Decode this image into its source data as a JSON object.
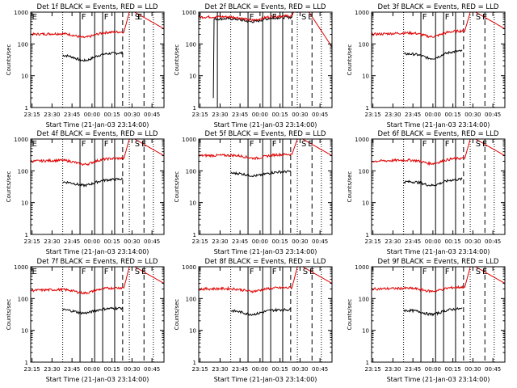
{
  "page": {
    "background": "#ffffff",
    "axis_color": "#000000",
    "events_color": "#000000",
    "lld_color": "#e00000",
    "y_label": "Counts/sec",
    "x_label": "Start Time (21-Jan-03 23:14:00)",
    "x_tick_labels": [
      "23:15",
      "23:30",
      "23:45",
      "00:00",
      "00:15",
      "00:30",
      "00:45"
    ],
    "y_tick_labels": [
      "1",
      "10",
      "100",
      "1000"
    ],
    "marker_F": "F",
    "marker_E": "E",
    "marker_S": "S"
  },
  "chart_data": [
    {
      "type": "line",
      "detector": "1f",
      "title": "Det 1f BLACK = Events, RED = LLD",
      "xlabel": "Start Time (21-Jan-03 23:14:00)",
      "ylabel": "Counts/sec",
      "x_unit": "minutes since 23:14",
      "xlim": [
        0,
        100
      ],
      "y_scale": "log",
      "ylim": [
        1,
        1000
      ],
      "series": [
        {
          "name": "Events",
          "color": "#000000",
          "x_start": 24,
          "x_end": 69,
          "start_value": 45,
          "end_value": 52,
          "dip_value": 30,
          "dip_at": 40
        },
        {
          "name": "LLD",
          "color": "#e00000",
          "x_start": 0,
          "x_end": 100,
          "start_value": 200,
          "end_value": 240,
          "dip_value": 160,
          "dip_at": 40,
          "flare_start": 70,
          "flare_peak": 1000,
          "decay_end_value": 300
        }
      ],
      "vlines_dotted": [
        24,
        74,
        92
      ],
      "vlines_solid": [
        37,
        48,
        54,
        63
      ],
      "vlines_dashed": [
        69,
        85
      ],
      "markers": [
        {
          "label": "E",
          "x": 1
        },
        {
          "label": "F",
          "x": 38
        },
        {
          "label": "F",
          "x": 55
        },
        {
          "label": "S",
          "x": 78
        },
        {
          "label": "E",
          "x": 80
        }
      ]
    },
    {
      "type": "line",
      "detector": "2f",
      "title": "Det 2f BLACK = Events, RED = LLD",
      "xlabel": "Start Time (21-Jan-03 23:14:00)",
      "ylabel": "Counts/sec",
      "x_unit": "minutes since 23:14",
      "xlim": [
        0,
        100
      ],
      "y_scale": "log",
      "ylim": [
        1,
        1000
      ],
      "series": [
        {
          "name": "Events",
          "color": "#000000",
          "x_start": 11,
          "x_end": 70,
          "start_value": 610,
          "end_value": 690,
          "dip_value": 500,
          "dip_at": 40,
          "glitch_value": 2,
          "glitch_at": 11
        },
        {
          "name": "LLD",
          "color": "#e00000",
          "x_start": 0,
          "x_end": 100,
          "start_value": 700,
          "end_value": 760,
          "dip_value": 560,
          "dip_at": 40,
          "flare_start": 70,
          "flare_peak": 2000,
          "decay_end_value": 80
        }
      ],
      "vlines_dotted": [
        24,
        74,
        92
      ],
      "vlines_solid": [
        14,
        37,
        48,
        54,
        63
      ],
      "vlines_dashed": [
        70,
        85
      ],
      "markers": [
        {
          "label": "F",
          "x": 38
        },
        {
          "label": "F",
          "x": 55
        },
        {
          "label": "S",
          "x": 77
        },
        {
          "label": "E",
          "x": 82
        }
      ]
    },
    {
      "type": "line",
      "detector": "3f",
      "title": "Det 3f BLACK = Events, RED = LLD",
      "xlabel": "Start Time (21-Jan-03 23:14:00)",
      "ylabel": "Counts/sec",
      "x_unit": "minutes since 23:14",
      "xlim": [
        0,
        100
      ],
      "y_scale": "log",
      "ylim": [
        1,
        1000
      ],
      "series": [
        {
          "name": "Events",
          "color": "#000000",
          "x_start": 24,
          "x_end": 68,
          "start_value": 48,
          "end_value": 60,
          "dip_value": 35,
          "dip_at": 45
        },
        {
          "name": "LLD",
          "color": "#e00000",
          "x_start": 0,
          "x_end": 100,
          "start_value": 200,
          "end_value": 260,
          "dip_value": 170,
          "dip_at": 45,
          "flare_start": 70,
          "flare_peak": 1000,
          "decay_end_value": 300
        }
      ],
      "vlines_dotted": [
        24,
        74,
        92
      ],
      "vlines_solid": [
        37,
        48,
        54,
        63
      ],
      "vlines_dashed": [
        69,
        85
      ],
      "markers": [
        {
          "label": "F",
          "x": 38
        },
        {
          "label": "F",
          "x": 55
        },
        {
          "label": "S",
          "x": 78
        },
        {
          "label": "E",
          "x": 83
        }
      ]
    },
    {
      "type": "line",
      "detector": "4f",
      "title": "Det 4f BLACK = Events, RED = LLD",
      "xlabel": "Start Time (21-Jan-03 23:14:00)",
      "ylabel": "Counts/sec",
      "x_unit": "minutes since 23:14",
      "xlim": [
        0,
        100
      ],
      "y_scale": "log",
      "ylim": [
        1,
        1000
      ],
      "series": [
        {
          "name": "Events",
          "color": "#000000",
          "x_start": 24,
          "x_end": 69,
          "start_value": 45,
          "end_value": 55,
          "dip_value": 35,
          "dip_at": 40
        },
        {
          "name": "LLD",
          "color": "#e00000",
          "x_start": 0,
          "x_end": 100,
          "start_value": 200,
          "end_value": 250,
          "dip_value": 160,
          "dip_at": 40,
          "flare_start": 70,
          "flare_peak": 1000,
          "decay_end_value": 300
        }
      ],
      "vlines_dotted": [
        24,
        74,
        92
      ],
      "vlines_solid": [
        37,
        48,
        54,
        63
      ],
      "vlines_dashed": [
        69,
        85
      ],
      "markers": [
        {
          "label": "E",
          "x": 1
        },
        {
          "label": "F",
          "x": 38
        },
        {
          "label": "F",
          "x": 55
        },
        {
          "label": "S",
          "x": 78
        },
        {
          "label": "E",
          "x": 83
        }
      ]
    },
    {
      "type": "line",
      "detector": "5f",
      "title": "Det 5f BLACK = Events, RED = LLD",
      "xlabel": "Start Time (21-Jan-03 23:14:00)",
      "ylabel": "Counts/sec",
      "x_unit": "minutes since 23:14",
      "xlim": [
        0,
        100
      ],
      "y_scale": "log",
      "ylim": [
        1,
        1000
      ],
      "series": [
        {
          "name": "Events",
          "color": "#000000",
          "x_start": 24,
          "x_end": 69,
          "start_value": 85,
          "end_value": 95,
          "dip_value": 70,
          "dip_at": 42
        },
        {
          "name": "LLD",
          "color": "#e00000",
          "x_start": 0,
          "x_end": 100,
          "start_value": 300,
          "end_value": 330,
          "dip_value": 250,
          "dip_at": 42,
          "flare_start": 70,
          "flare_peak": 1000,
          "decay_end_value": 300
        }
      ],
      "vlines_dotted": [
        24,
        74,
        92
      ],
      "vlines_solid": [
        37,
        48,
        54,
        63
      ],
      "vlines_dashed": [
        69,
        85
      ],
      "markers": [
        {
          "label": "F",
          "x": 38
        },
        {
          "label": "F",
          "x": 55
        },
        {
          "label": "S",
          "x": 77
        },
        {
          "label": "E",
          "x": 82
        }
      ]
    },
    {
      "type": "line",
      "detector": "6f",
      "title": "Det 6f BLACK = Events, RED = LLD",
      "xlabel": "Start Time (21-Jan-03 23:14:00)",
      "ylabel": "Counts/sec",
      "x_unit": "minutes since 23:14",
      "xlim": [
        0,
        100
      ],
      "y_scale": "log",
      "ylim": [
        1,
        1000
      ],
      "series": [
        {
          "name": "Events",
          "color": "#000000",
          "x_start": 24,
          "x_end": 68,
          "start_value": 45,
          "end_value": 55,
          "dip_value": 35,
          "dip_at": 45
        },
        {
          "name": "LLD",
          "color": "#e00000",
          "x_start": 0,
          "x_end": 100,
          "start_value": 200,
          "end_value": 250,
          "dip_value": 170,
          "dip_at": 45,
          "flare_start": 70,
          "flare_peak": 1000,
          "decay_end_value": 300
        }
      ],
      "vlines_dotted": [
        24,
        74,
        92
      ],
      "vlines_solid": [
        37,
        48,
        54,
        63
      ],
      "vlines_dashed": [
        69,
        85
      ],
      "markers": [
        {
          "label": "F",
          "x": 38
        },
        {
          "label": "F",
          "x": 55
        },
        {
          "label": "S",
          "x": 78
        },
        {
          "label": "E",
          "x": 83
        }
      ]
    },
    {
      "type": "line",
      "detector": "7f",
      "title": "Det 7f BLACK = Events, RED = LLD",
      "xlabel": "Start Time (21-Jan-03 23:14:00)",
      "ylabel": "Counts/sec",
      "x_unit": "minutes since 23:14",
      "xlim": [
        0,
        100
      ],
      "y_scale": "log",
      "ylim": [
        1,
        1000
      ],
      "series": [
        {
          "name": "Events",
          "color": "#000000",
          "x_start": 24,
          "x_end": 69,
          "start_value": 45,
          "end_value": 50,
          "dip_value": 35,
          "dip_at": 40
        },
        {
          "name": "LLD",
          "color": "#e00000",
          "x_start": 0,
          "x_end": 100,
          "start_value": 180,
          "end_value": 220,
          "dip_value": 150,
          "dip_at": 40,
          "flare_start": 70,
          "flare_peak": 1000,
          "decay_end_value": 300
        }
      ],
      "vlines_dotted": [
        24,
        74,
        92
      ],
      "vlines_solid": [
        37,
        48,
        54,
        63
      ],
      "vlines_dashed": [
        69,
        85
      ],
      "markers": [
        {
          "label": "E",
          "x": 1
        },
        {
          "label": "F",
          "x": 38
        },
        {
          "label": "F",
          "x": 55
        },
        {
          "label": "S",
          "x": 78
        },
        {
          "label": "E",
          "x": 83
        }
      ]
    },
    {
      "type": "line",
      "detector": "8f",
      "title": "Det 8f BLACK = Events, RED = LLD",
      "xlabel": "Start Time (21-Jan-03 23:14:00)",
      "ylabel": "Counts/sec",
      "x_unit": "minutes since 23:14",
      "xlim": [
        0,
        100
      ],
      "y_scale": "log",
      "ylim": [
        1,
        1000
      ],
      "series": [
        {
          "name": "Events",
          "color": "#000000",
          "x_start": 24,
          "x_end": 69,
          "start_value": 42,
          "end_value": 45,
          "dip_value": 32,
          "dip_at": 40
        },
        {
          "name": "LLD",
          "color": "#e00000",
          "x_start": 0,
          "x_end": 100,
          "start_value": 200,
          "end_value": 220,
          "dip_value": 170,
          "dip_at": 40,
          "flare_start": 70,
          "flare_peak": 1000,
          "decay_end_value": 300
        }
      ],
      "vlines_dotted": [
        24,
        74,
        92
      ],
      "vlines_solid": [
        37,
        48,
        54,
        63
      ],
      "vlines_dashed": [
        69,
        85
      ],
      "markers": [
        {
          "label": "F",
          "x": 38
        },
        {
          "label": "F",
          "x": 55
        },
        {
          "label": "S",
          "x": 78
        },
        {
          "label": "E",
          "x": 83
        }
      ]
    },
    {
      "type": "line",
      "detector": "9f",
      "title": "Det 9f BLACK = Events, RED = LLD",
      "xlabel": "Start Time (21-Jan-03 23:14:00)",
      "ylabel": "Counts/sec",
      "x_unit": "minutes since 23:14",
      "xlim": [
        0,
        100
      ],
      "y_scale": "log",
      "ylim": [
        1,
        1000
      ],
      "series": [
        {
          "name": "Events",
          "color": "#000000",
          "x_start": 24,
          "x_end": 68,
          "start_value": 42,
          "end_value": 48,
          "dip_value": 32,
          "dip_at": 45
        },
        {
          "name": "LLD",
          "color": "#e00000",
          "x_start": 0,
          "x_end": 100,
          "start_value": 200,
          "end_value": 230,
          "dip_value": 170,
          "dip_at": 45,
          "flare_start": 70,
          "flare_peak": 1000,
          "decay_end_value": 300
        }
      ],
      "vlines_dotted": [
        24,
        74,
        92
      ],
      "vlines_solid": [
        37,
        48,
        54,
        63
      ],
      "vlines_dashed": [
        69,
        85
      ],
      "markers": [
        {
          "label": "F",
          "x": 38
        },
        {
          "label": "F",
          "x": 55
        },
        {
          "label": "S",
          "x": 78
        },
        {
          "label": "E",
          "x": 83
        }
      ]
    }
  ]
}
